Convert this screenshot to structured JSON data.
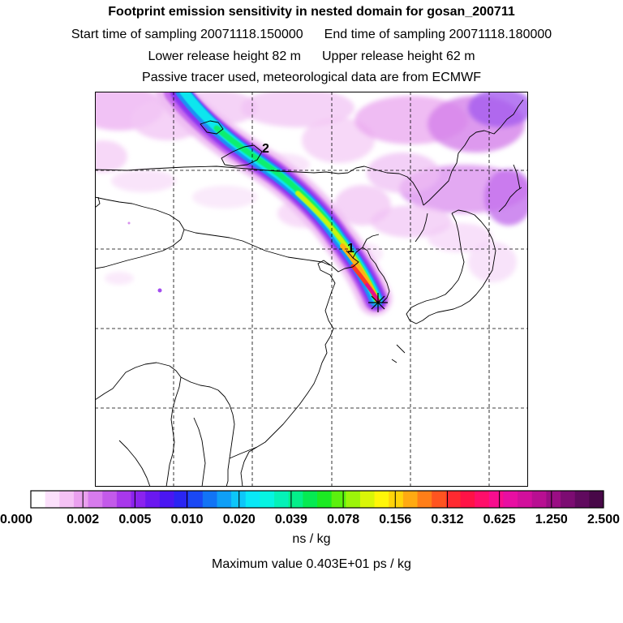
{
  "header": {
    "title": "Footprint emission sensitivity in nested domain for gosan_200711",
    "start_time": "Start time of sampling 20071118.150000",
    "end_time": "End time of sampling 20071118.180000",
    "lower_height": "Lower release height   82 m",
    "upper_height": "Upper release height   62 m",
    "tracer_note": "Passive tracer used, meteorological data are from ECMWF"
  },
  "map": {
    "trajectory_labels": [
      "2",
      "1"
    ],
    "receptor_marker": "receptor-star"
  },
  "colorbar": {
    "tick_labels": [
      "0.000",
      "0.002",
      "0.005",
      "0.010",
      "0.020",
      "0.039",
      "0.078",
      "0.156",
      "0.312",
      "0.625",
      "1.250",
      "2.500"
    ],
    "colors": [
      "#ffffff",
      "#fbe0fb",
      "#f5c2f5",
      "#eaa0ef",
      "#d77bed",
      "#c35aea",
      "#a838eb",
      "#8b23ee",
      "#6a18f0",
      "#4a16f2",
      "#2a25f3",
      "#1a48f4",
      "#1274f6",
      "#0f9ff7",
      "#0dc6f9",
      "#08e8f7",
      "#06f4e2",
      "#05f2b8",
      "#04ef8a",
      "#06ea52",
      "#1cea22",
      "#5cf00e",
      "#9cf40a",
      "#d9f608",
      "#fff608",
      "#ffd40a",
      "#ffaa12",
      "#ff7e18",
      "#ff5420",
      "#ff2a30",
      "#ff1246",
      "#ff0e6a",
      "#f80d8e",
      "#e80ea2",
      "#d20f9c",
      "#b80f92",
      "#9a0e84",
      "#7c0c72",
      "#600a5e",
      "#480848"
    ],
    "unit": "ns / kg"
  },
  "footer": {
    "max_value": "Maximum value  0.403E+01 ps / kg"
  }
}
